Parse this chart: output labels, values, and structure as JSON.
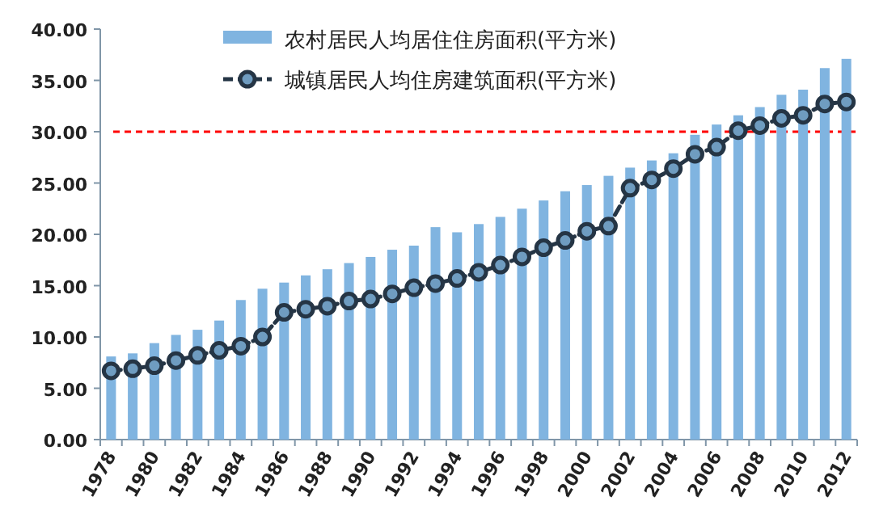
{
  "chart_data": {
    "type": "bar",
    "categories": [
      "1978",
      null,
      "1980",
      null,
      "1982",
      null,
      "1984",
      null,
      "1986",
      null,
      "1988",
      null,
      "1990",
      null,
      "1992",
      null,
      "1994",
      null,
      "1996",
      null,
      "1998",
      null,
      "2000",
      null,
      "2002",
      null,
      "2004",
      null,
      "2006",
      null,
      "2008",
      null,
      "2010",
      null,
      "2012"
    ],
    "series": [
      {
        "name": "农村居民人均居住住房面积(平方米)",
        "color": "#80b4e0",
        "values": [
          8.1,
          8.4,
          9.4,
          10.2,
          10.7,
          11.6,
          13.6,
          14.7,
          15.3,
          16.0,
          16.6,
          17.2,
          17.8,
          18.5,
          18.9,
          20.7,
          20.2,
          21.0,
          21.7,
          22.5,
          23.3,
          24.2,
          24.8,
          25.7,
          26.5,
          27.2,
          27.9,
          29.7,
          30.7,
          31.6,
          32.4,
          33.6,
          34.1,
          36.2,
          37.1
        ]
      },
      {
        "name": "城镇居民人均住房建筑面积(平方米)",
        "type": "line",
        "color": "#253545",
        "marker": "circle",
        "line_style": "dashed",
        "values": [
          6.7,
          6.9,
          7.2,
          7.7,
          8.2,
          8.7,
          9.1,
          10.0,
          12.4,
          12.7,
          13.0,
          13.5,
          13.7,
          14.2,
          14.8,
          15.2,
          15.7,
          16.3,
          17.0,
          17.8,
          18.7,
          19.4,
          20.3,
          20.8,
          24.5,
          25.3,
          26.4,
          27.8,
          28.5,
          30.1,
          30.6,
          31.3,
          31.6,
          32.7,
          32.9
        ]
      }
    ],
    "ylim": [
      0,
      40
    ],
    "yticks": [
      {
        "value": 0,
        "label": "0.00"
      },
      {
        "value": 5,
        "label": "5.00"
      },
      {
        "value": 10,
        "label": "10.00"
      },
      {
        "value": 15,
        "label": "15.00"
      },
      {
        "value": 20,
        "label": "20.00"
      },
      {
        "value": 25,
        "label": "25.00"
      },
      {
        "value": 30,
        "label": "30.00"
      },
      {
        "value": 35,
        "label": "35.00"
      },
      {
        "value": 40,
        "label": "40.00"
      }
    ],
    "ref_lines": [
      {
        "axis": "y",
        "value": 30,
        "color": "#ff0000",
        "line_style": "dashed"
      }
    ],
    "grid": false,
    "legend": "top"
  }
}
